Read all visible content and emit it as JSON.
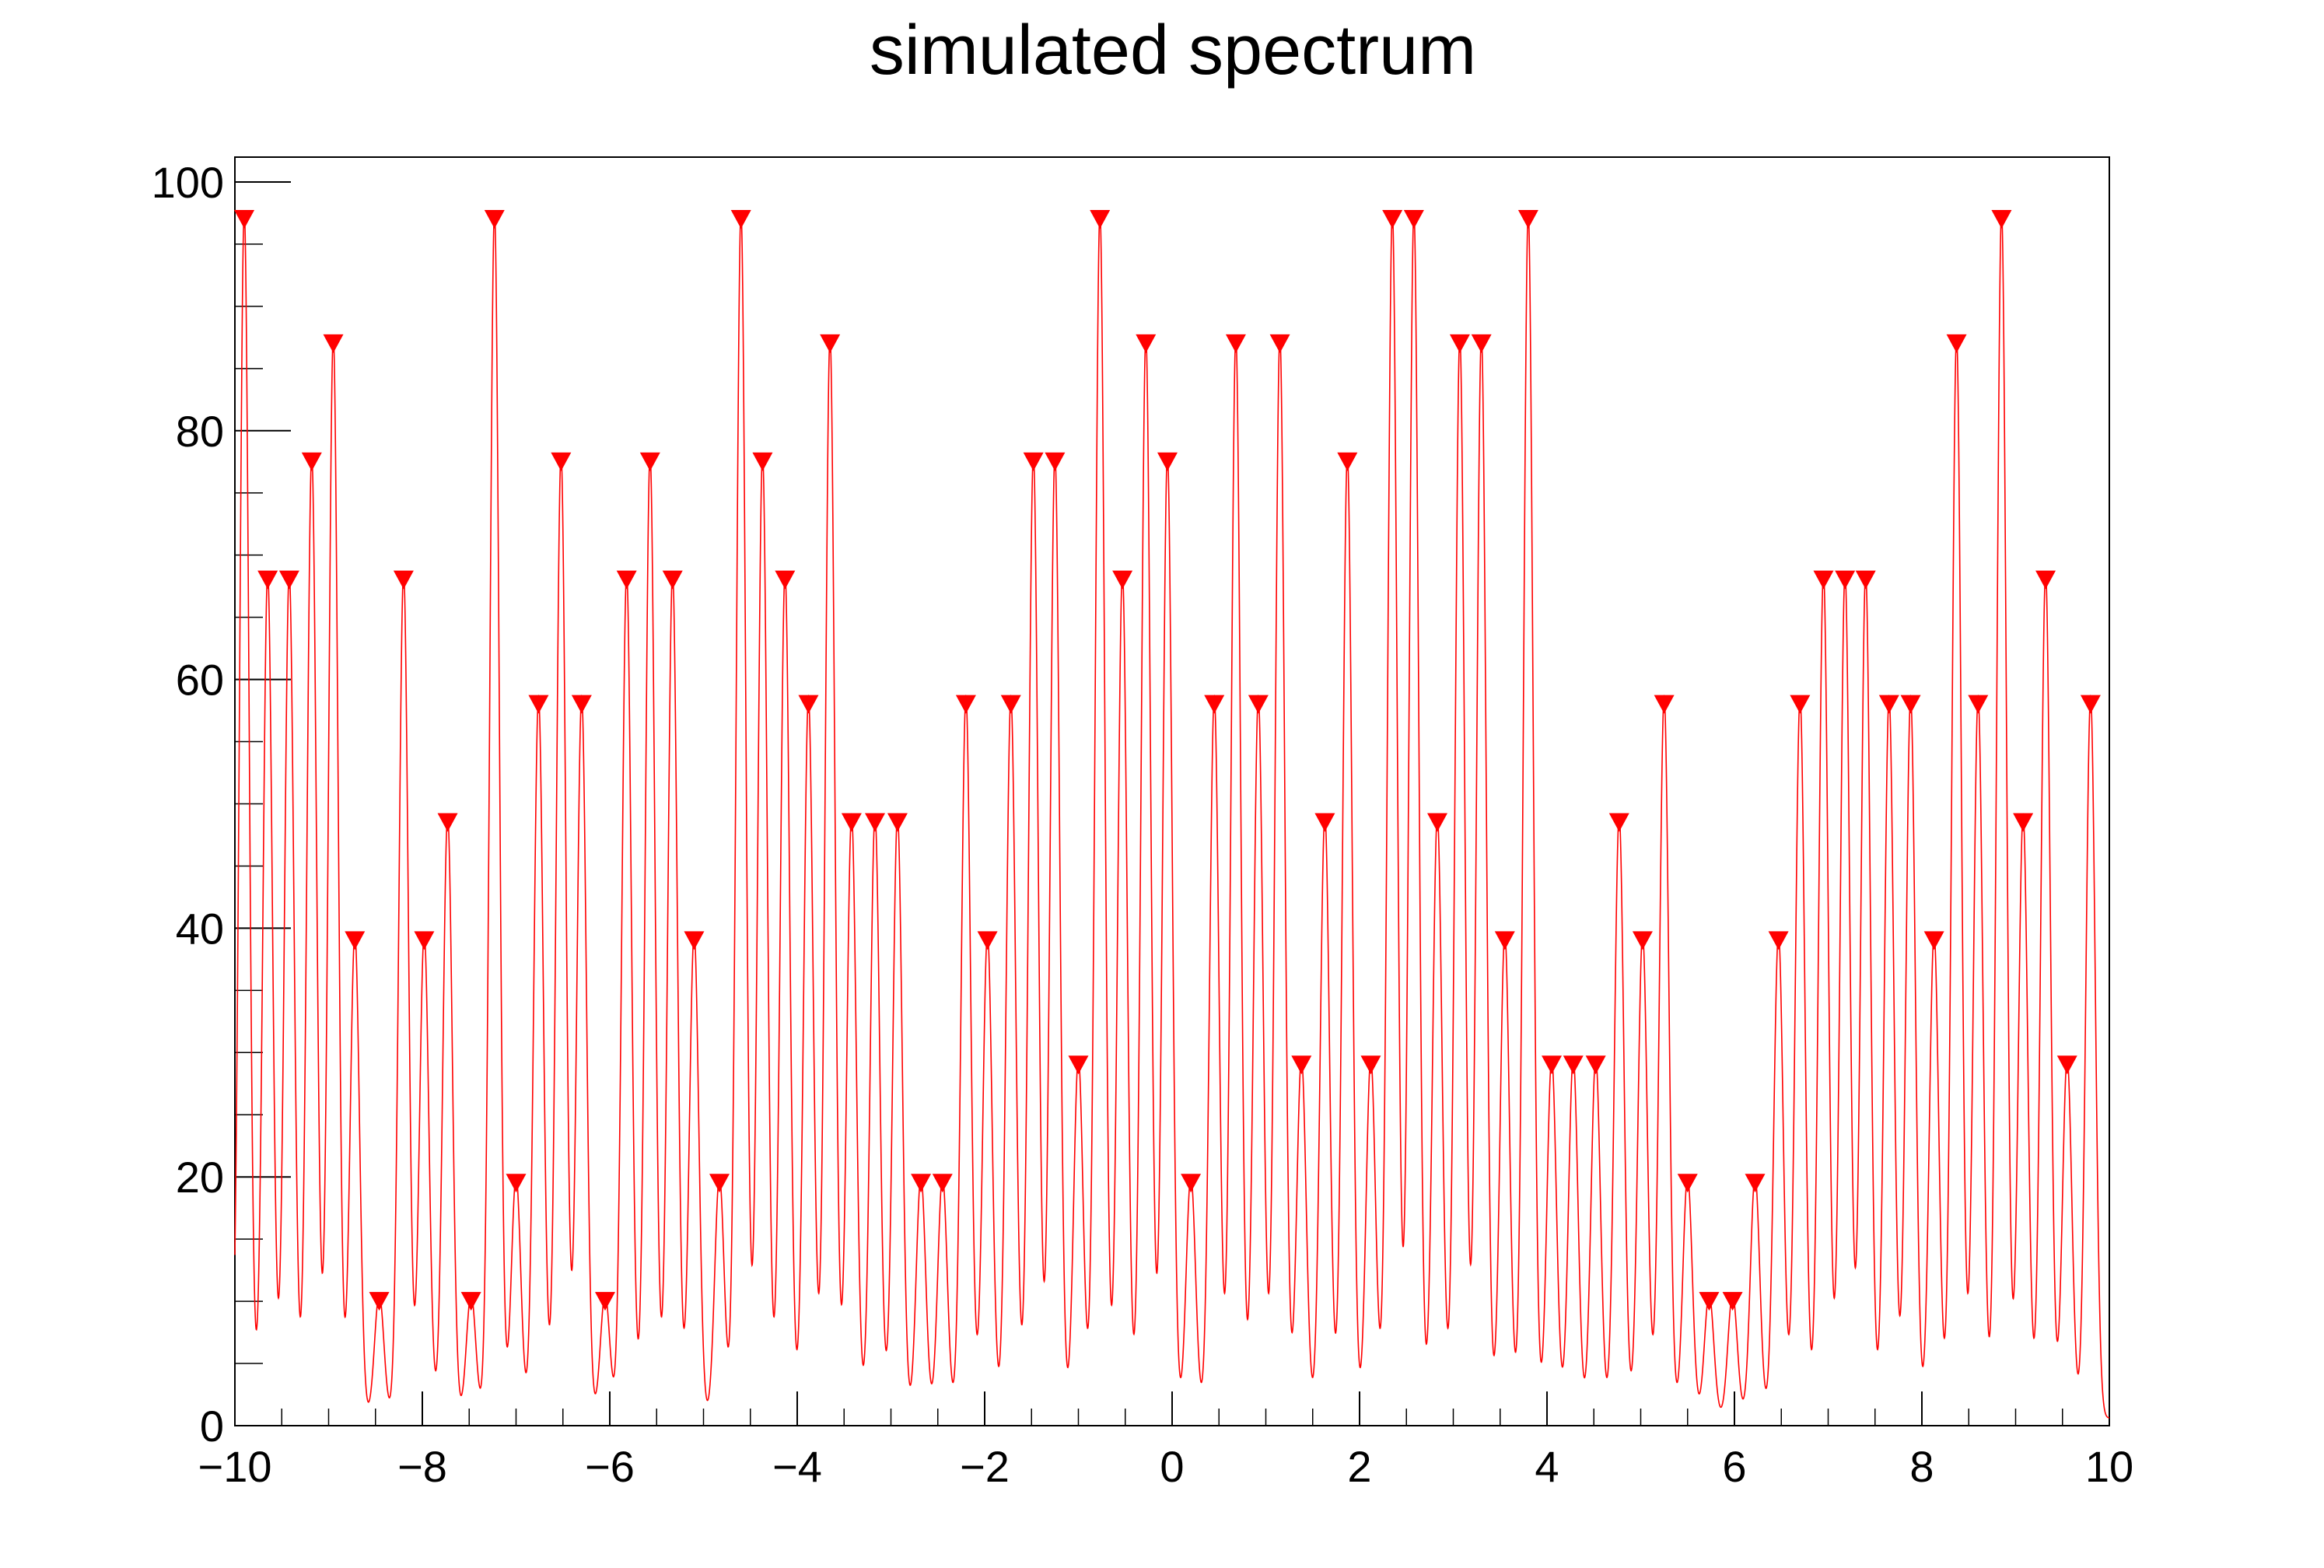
{
  "chart_data": {
    "type": "line",
    "title": "simulated spectrum",
    "xlabel": "",
    "ylabel": "",
    "xlim": [
      -10,
      10
    ],
    "ylim": [
      0,
      102
    ],
    "x_ticks": [
      -10,
      -8,
      -6,
      -4,
      -2,
      0,
      2,
      4,
      6,
      8,
      10
    ],
    "x_tick_labels": [
      "−10",
      "−8",
      "−6",
      "−4",
      "−2",
      "0",
      "2",
      "4",
      "6",
      "8",
      "10"
    ],
    "y_ticks": [
      0,
      20,
      40,
      60,
      80,
      100
    ],
    "y_tick_labels": [
      "0",
      "20",
      "40",
      "60",
      "80",
      "100"
    ],
    "grid": false,
    "line_color": "#ff0000",
    "marker_color": "#ff0000",
    "peak_sigma": 0.05,
    "series": [
      {
        "peaks": [
          {
            "x": -9.9,
            "y": 97
          },
          {
            "x": -9.65,
            "y": 68
          },
          {
            "x": -9.42,
            "y": 68
          },
          {
            "x": -9.18,
            "y": 77.5
          },
          {
            "x": -8.95,
            "y": 87
          },
          {
            "x": -8.72,
            "y": 39
          },
          {
            "x": -8.46,
            "y": 10
          },
          {
            "x": -8.2,
            "y": 68
          },
          {
            "x": -7.98,
            "y": 39
          },
          {
            "x": -7.73,
            "y": 48.5
          },
          {
            "x": -7.48,
            "y": 10
          },
          {
            "x": -7.23,
            "y": 97
          },
          {
            "x": -7.0,
            "y": 19.5
          },
          {
            "x": -6.76,
            "y": 58
          },
          {
            "x": -6.52,
            "y": 77.5
          },
          {
            "x": -6.3,
            "y": 58
          },
          {
            "x": -6.05,
            "y": 10
          },
          {
            "x": -5.82,
            "y": 68
          },
          {
            "x": -5.57,
            "y": 77.5
          },
          {
            "x": -5.33,
            "y": 68
          },
          {
            "x": -5.1,
            "y": 39
          },
          {
            "x": -4.83,
            "y": 19.5
          },
          {
            "x": -4.6,
            "y": 97
          },
          {
            "x": -4.37,
            "y": 77.5
          },
          {
            "x": -4.13,
            "y": 68
          },
          {
            "x": -3.88,
            "y": 58
          },
          {
            "x": -3.65,
            "y": 87
          },
          {
            "x": -3.42,
            "y": 48.5
          },
          {
            "x": -3.17,
            "y": 48.5
          },
          {
            "x": -2.93,
            "y": 48.5
          },
          {
            "x": -2.68,
            "y": 19.5
          },
          {
            "x": -2.45,
            "y": 19.5
          },
          {
            "x": -2.2,
            "y": 58
          },
          {
            "x": -1.97,
            "y": 39
          },
          {
            "x": -1.72,
            "y": 58
          },
          {
            "x": -1.48,
            "y": 77.5
          },
          {
            "x": -1.25,
            "y": 77.5
          },
          {
            "x": -1.0,
            "y": 29
          },
          {
            "x": -0.77,
            "y": 97
          },
          {
            "x": -0.53,
            "y": 68
          },
          {
            "x": -0.28,
            "y": 87
          },
          {
            "x": -0.05,
            "y": 77.5
          },
          {
            "x": 0.2,
            "y": 19.5
          },
          {
            "x": 0.45,
            "y": 58
          },
          {
            "x": 0.68,
            "y": 87
          },
          {
            "x": 0.92,
            "y": 58
          },
          {
            "x": 1.15,
            "y": 87
          },
          {
            "x": 1.38,
            "y": 29
          },
          {
            "x": 1.63,
            "y": 48.5
          },
          {
            "x": 1.87,
            "y": 77.5
          },
          {
            "x": 2.12,
            "y": 29
          },
          {
            "x": 2.35,
            "y": 97
          },
          {
            "x": 2.58,
            "y": 97
          },
          {
            "x": 2.83,
            "y": 48.5
          },
          {
            "x": 3.07,
            "y": 87
          },
          {
            "x": 3.3,
            "y": 87
          },
          {
            "x": 3.55,
            "y": 39
          },
          {
            "x": 3.8,
            "y": 97
          },
          {
            "x": 4.05,
            "y": 29
          },
          {
            "x": 4.28,
            "y": 29
          },
          {
            "x": 4.52,
            "y": 29
          },
          {
            "x": 4.77,
            "y": 48.5
          },
          {
            "x": 5.02,
            "y": 39
          },
          {
            "x": 5.25,
            "y": 58
          },
          {
            "x": 5.5,
            "y": 19.5
          },
          {
            "x": 5.73,
            "y": 10
          },
          {
            "x": 5.98,
            "y": 10
          },
          {
            "x": 6.22,
            "y": 19.5
          },
          {
            "x": 6.47,
            "y": 39
          },
          {
            "x": 6.7,
            "y": 58
          },
          {
            "x": 6.95,
            "y": 68
          },
          {
            "x": 7.18,
            "y": 68
          },
          {
            "x": 7.4,
            "y": 68
          },
          {
            "x": 7.65,
            "y": 58
          },
          {
            "x": 7.88,
            "y": 58
          },
          {
            "x": 8.13,
            "y": 39
          },
          {
            "x": 8.37,
            "y": 87
          },
          {
            "x": 8.6,
            "y": 58
          },
          {
            "x": 8.85,
            "y": 97
          },
          {
            "x": 9.08,
            "y": 48.5
          },
          {
            "x": 9.32,
            "y": 68
          },
          {
            "x": 9.55,
            "y": 29
          },
          {
            "x": 9.8,
            "y": 58
          }
        ]
      }
    ]
  }
}
